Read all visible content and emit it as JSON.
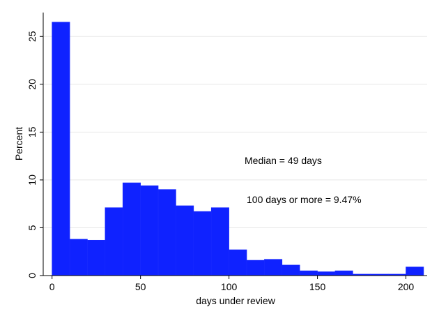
{
  "chart_data": {
    "type": "bar",
    "xlabel": "days under review",
    "ylabel": "Percent",
    "xlim": [
      -5,
      212
    ],
    "ylim": [
      0,
      27.5
    ],
    "grid": true,
    "x_ticks": [
      0,
      50,
      100,
      150,
      200
    ],
    "y_ticks": [
      0,
      5,
      10,
      15,
      20,
      25
    ],
    "bins": [
      {
        "start": 0,
        "end": 10,
        "value": 26.5
      },
      {
        "start": 10,
        "end": 20,
        "value": 3.8
      },
      {
        "start": 20,
        "end": 30,
        "value": 3.7
      },
      {
        "start": 30,
        "end": 40,
        "value": 7.1
      },
      {
        "start": 40,
        "end": 50,
        "value": 9.7
      },
      {
        "start": 50,
        "end": 60,
        "value": 9.4
      },
      {
        "start": 60,
        "end": 70,
        "value": 9.0
      },
      {
        "start": 70,
        "end": 80,
        "value": 7.3
      },
      {
        "start": 80,
        "end": 90,
        "value": 6.7
      },
      {
        "start": 90,
        "end": 100,
        "value": 7.1
      },
      {
        "start": 100,
        "end": 110,
        "value": 2.7
      },
      {
        "start": 110,
        "end": 120,
        "value": 1.6
      },
      {
        "start": 120,
        "end": 130,
        "value": 1.7
      },
      {
        "start": 130,
        "end": 140,
        "value": 1.1
      },
      {
        "start": 140,
        "end": 150,
        "value": 0.5
      },
      {
        "start": 150,
        "end": 160,
        "value": 0.4
      },
      {
        "start": 160,
        "end": 170,
        "value": 0.5
      },
      {
        "start": 170,
        "end": 180,
        "value": 0.15
      },
      {
        "start": 180,
        "end": 190,
        "value": 0.15
      },
      {
        "start": 190,
        "end": 200,
        "value": 0.15
      },
      {
        "start": 200,
        "end": 210,
        "value": 0.9
      }
    ],
    "annotations": [
      "Median = 49 days",
      "100 days or more = 9.47%"
    ],
    "bar_color": "#0f22ff",
    "grid_color": "#e8e8e8",
    "axis_color": "#000000"
  }
}
